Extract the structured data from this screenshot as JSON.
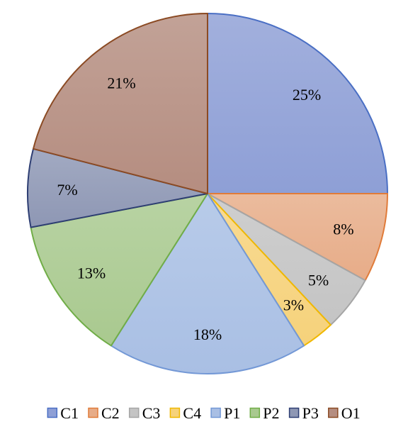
{
  "chart_data": {
    "type": "pie",
    "title": "",
    "legend_position": "bottom",
    "slices": [
      {
        "name": "C1",
        "value": 25,
        "label": "25%",
        "color": "#8E9FD6",
        "edge": "#4A6FC4"
      },
      {
        "name": "C2",
        "value": 8,
        "label": "8%",
        "color": "#E7AC88",
        "edge": "#E07B39"
      },
      {
        "name": "C3",
        "value": 5,
        "label": "5%",
        "color": "#C4C4C4",
        "edge": "#A5A5A5"
      },
      {
        "name": "C4",
        "value": 3,
        "label": "3%",
        "color": "#F6D27B",
        "edge": "#F0B800"
      },
      {
        "name": "P1",
        "value": 18,
        "label": "18%",
        "color": "#A9BFE4",
        "edge": "#7398D6"
      },
      {
        "name": "P2",
        "value": 13,
        "label": "13%",
        "color": "#A9C98F",
        "edge": "#70AD47"
      },
      {
        "name": "P3",
        "value": 7,
        "label": "7%",
        "color": "#8E97B4",
        "edge": "#2E3E73"
      },
      {
        "name": "O1",
        "value": 21,
        "label": "21%",
        "color": "#B58D80",
        "edge": "#8B4A23"
      }
    ]
  }
}
